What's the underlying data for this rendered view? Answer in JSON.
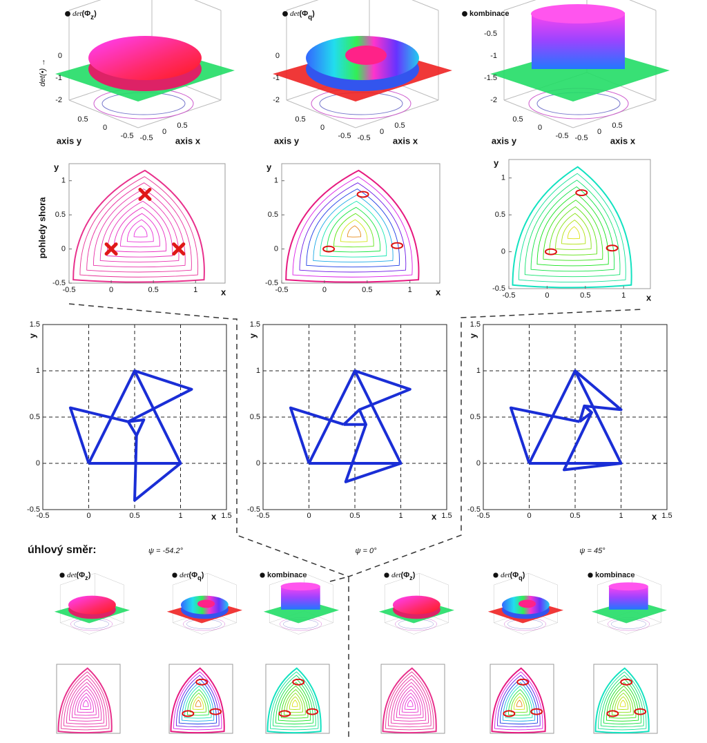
{
  "surface_panels": [
    {
      "title_parts": [
        "det",
        "(Φ",
        "z",
        ")"
      ],
      "zlabel": "det(•) →",
      "zticks": [
        0,
        -1,
        -2
      ],
      "yticks": [
        0.5,
        0,
        -0.5
      ],
      "xticks": [
        -0.5,
        0,
        0.5
      ],
      "ylabel": "axis y",
      "xlabel": "axis x"
    },
    {
      "title_parts": [
        "det",
        "(Φ",
        "q",
        ")"
      ],
      "zticks": [
        0,
        -1,
        -2
      ],
      "yticks": [
        0.5,
        0,
        -0.5
      ],
      "xticks": [
        -0.5,
        0,
        0.5
      ],
      "ylabel": "axis y",
      "xlabel": "axis x"
    },
    {
      "title_parts": [
        "kombinace"
      ],
      "zticks": [
        -0.5,
        -1,
        -1.5,
        -2
      ],
      "yticks": [
        0.5,
        0,
        -0.5
      ],
      "xticks": [
        -0.5,
        0,
        0.5
      ],
      "ylabel": "axis y",
      "xlabel": "axis x"
    }
  ],
  "contour_panels": [
    {
      "side_label": "pohledy shora",
      "ylabel": "y",
      "xlabel": "x",
      "xlim": [
        -0.5,
        1.35
      ],
      "ylim": [
        -0.5,
        1.25
      ],
      "xticks": [
        -0.5,
        0,
        0.5,
        1
      ],
      "yticks": [
        -0.5,
        0,
        0.5,
        1
      ],
      "markers": {
        "x": [
          0,
          0.8,
          0.4
        ],
        "y": [
          0,
          0,
          0.8
        ]
      }
    },
    {
      "ylabel": "y",
      "xlabel": "x",
      "xlim": [
        -0.5,
        1.35
      ],
      "ylim": [
        -0.5,
        1.25
      ],
      "xticks": [
        -0.5,
        0,
        0.5,
        1
      ],
      "yticks": [
        -0.5,
        0,
        0.5,
        1
      ]
    },
    {
      "ylabel": "y",
      "xlabel": "x",
      "xlim": [
        -0.5,
        1.35
      ],
      "ylim": [
        -0.5,
        1.25
      ],
      "xticks": [
        -0.5,
        0,
        0.5,
        1
      ],
      "yticks": [
        -0.5,
        0,
        0.5,
        1
      ]
    }
  ],
  "direction_label": "úhlový směr:",
  "chart_data": [
    {
      "type": "line",
      "caption": "ψ = -54.2°",
      "xlabel": "x",
      "ylabel": "y",
      "color": "#1a2ed6",
      "grid": true,
      "xlim": [
        -0.5,
        1.5
      ],
      "ylim": [
        -0.5,
        1.5
      ],
      "xticks": [
        -0.5,
        0,
        0.5,
        1,
        1.5
      ],
      "yticks": [
        -0.5,
        0,
        0.5,
        1,
        1.5
      ],
      "series": [
        {
          "x": [
            0,
            1,
            0.5,
            0
          ],
          "values": [
            0,
            0,
            1,
            0
          ]
        },
        {
          "x": [
            0,
            -0.2,
            0.43
          ],
          "values": [
            0,
            0.6,
            0.45
          ]
        },
        {
          "x": [
            0.5,
            1.12,
            0.43
          ],
          "values": [
            1,
            0.8,
            0.45
          ]
        },
        {
          "x": [
            1,
            0.5,
            0.52
          ],
          "values": [
            0,
            -0.4,
            0.3
          ]
        },
        {
          "x": [
            0.43,
            0.6,
            0.52,
            0.43
          ],
          "values": [
            0.45,
            0.47,
            0.3,
            0.45
          ]
        }
      ]
    },
    {
      "type": "line",
      "caption": "ψ = 0°",
      "xlabel": "x",
      "ylabel": "y",
      "color": "#1a2ed6",
      "grid": true,
      "xlim": [
        -0.5,
        1.5
      ],
      "ylim": [
        -0.5,
        1.5
      ],
      "xticks": [
        -0.5,
        0,
        0.5,
        1,
        1.5
      ],
      "yticks": [
        -0.5,
        0,
        0.5,
        1,
        1.5
      ],
      "series": [
        {
          "x": [
            0,
            1,
            0.5,
            0
          ],
          "values": [
            0,
            0,
            1,
            0
          ]
        },
        {
          "x": [
            0,
            -0.2,
            0.38
          ],
          "values": [
            0,
            0.6,
            0.42
          ]
        },
        {
          "x": [
            0.5,
            1.1,
            0.55
          ],
          "values": [
            1,
            0.8,
            0.58
          ]
        },
        {
          "x": [
            1,
            0.4,
            0.62
          ],
          "values": [
            0,
            -0.2,
            0.42
          ]
        },
        {
          "x": [
            0.38,
            0.62,
            0.55,
            0.38
          ],
          "values": [
            0.42,
            0.42,
            0.58,
            0.42
          ]
        }
      ]
    },
    {
      "type": "line",
      "caption": "ψ = 45°",
      "xlabel": "x",
      "ylabel": "y",
      "color": "#1a2ed6",
      "grid": true,
      "xlim": [
        -0.5,
        1.5
      ],
      "ylim": [
        -0.5,
        1.5
      ],
      "xticks": [
        -0.5,
        0,
        0.5,
        1,
        1.5
      ],
      "yticks": [
        -0.5,
        0,
        0.5,
        1,
        1.5
      ],
      "series": [
        {
          "x": [
            0,
            1,
            0.5,
            0
          ],
          "values": [
            0,
            0,
            1,
            0
          ]
        },
        {
          "x": [
            0,
            -0.2,
            0.55
          ],
          "values": [
            0,
            0.6,
            0.45
          ]
        },
        {
          "x": [
            0.5,
            1,
            0.6
          ],
          "values": [
            1,
            0.58,
            0.62
          ]
        },
        {
          "x": [
            1,
            0.38,
            0.68
          ],
          "values": [
            0,
            -0.07,
            0.55
          ]
        },
        {
          "x": [
            0.55,
            0.6,
            0.68,
            0.55
          ],
          "values": [
            0.45,
            0.62,
            0.55,
            0.45
          ]
        }
      ]
    }
  ],
  "thumbnail_titles": [
    [
      [
        "det",
        "(Φ",
        "z",
        ")"
      ],
      [
        "det",
        "(Φ",
        "q",
        ")"
      ],
      [
        "kombinace"
      ]
    ],
    [
      [
        "det",
        "(Φ",
        "z",
        ")"
      ],
      [
        "det",
        "(Φ",
        "q",
        ")"
      ],
      [
        "kombinace"
      ]
    ]
  ]
}
